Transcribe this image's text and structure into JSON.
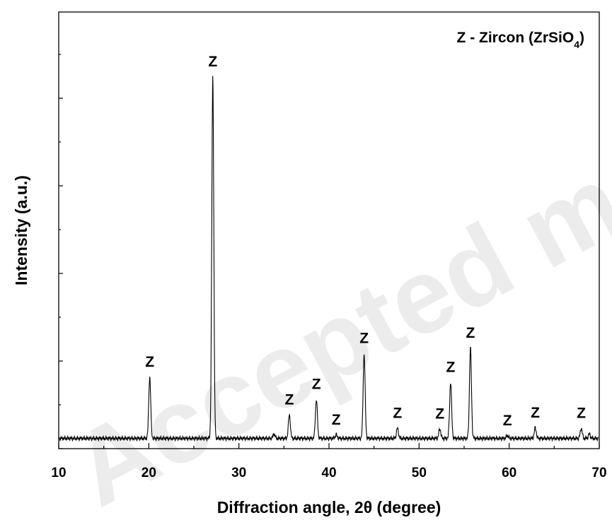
{
  "chart_data": {
    "type": "line",
    "xlabel": "Diffraction angle, 2θ (degree)",
    "ylabel": "Intensity (a.u.)",
    "xlim": [
      10,
      70
    ],
    "ylim": [
      0,
      100
    ],
    "x_ticks": [
      10,
      20,
      30,
      40,
      50,
      60,
      70
    ],
    "y_tick_labels": false,
    "grid": false,
    "legend": {
      "position": "top-right",
      "prefix": "Z - Zircon (ZrSiO",
      "subscript": "4",
      "suffix": ")"
    },
    "peak_marker_text": "Z",
    "peaks": [
      {
        "x": 20.1,
        "height": 17.0,
        "label": "Z"
      },
      {
        "x": 27.1,
        "height": 100.0,
        "label": "Z"
      },
      {
        "x": 33.9,
        "height": 1.2,
        "label": ""
      },
      {
        "x": 35.6,
        "height": 6.5,
        "label": "Z"
      },
      {
        "x": 38.6,
        "height": 10.8,
        "label": "Z"
      },
      {
        "x": 40.8,
        "height": 1.0,
        "label": "Z"
      },
      {
        "x": 43.9,
        "height": 23.5,
        "label": "Z"
      },
      {
        "x": 47.6,
        "height": 2.8,
        "label": "Z"
      },
      {
        "x": 52.3,
        "height": 2.6,
        "label": "Z"
      },
      {
        "x": 53.5,
        "height": 15.5,
        "label": "Z"
      },
      {
        "x": 55.7,
        "height": 25.0,
        "label": "Z"
      },
      {
        "x": 59.8,
        "height": 0.8,
        "label": "Z"
      },
      {
        "x": 62.9,
        "height": 2.9,
        "label": "Z"
      },
      {
        "x": 68.0,
        "height": 2.8,
        "label": "Z"
      },
      {
        "x": 68.9,
        "height": 1.2,
        "label": ""
      }
    ]
  },
  "watermark_text": "Accepted manuscript"
}
